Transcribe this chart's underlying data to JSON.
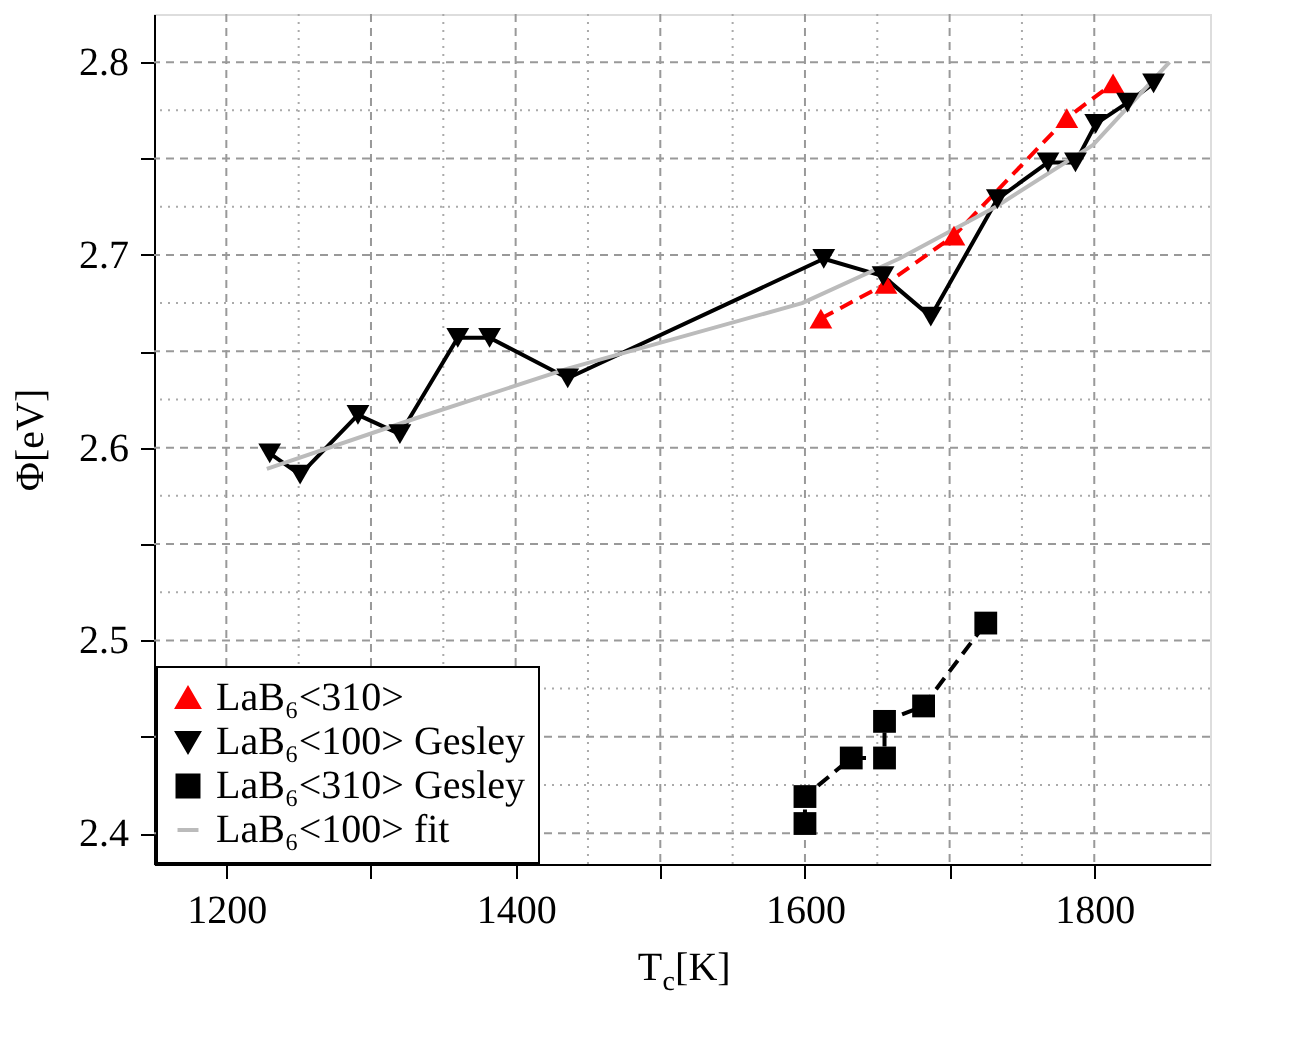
{
  "chart_data": {
    "type": "line",
    "xlabel": "T$_{c}$[K]",
    "ylabel": "Φ[eV]",
    "xlim": [
      1150,
      1880
    ],
    "ylim": [
      2.384,
      2.825
    ],
    "xticks": [
      1200,
      {
        "value": 1300,
        "label": null
      },
      1400,
      {
        "value": 1500,
        "label": null
      },
      1600,
      {
        "value": 1700,
        "label": null
      },
      1800
    ],
    "yticks": [
      2.4,
      {
        "value": 2.45,
        "label": null
      },
      2.5,
      {
        "value": 2.55,
        "label": null
      },
      2.6,
      {
        "value": 2.65,
        "label": null
      },
      2.7,
      {
        "value": 2.75,
        "label": null
      },
      2.8
    ],
    "grid": true,
    "legend": "bottom left",
    "series": [
      {
        "name": "LaB₆<310>",
        "color": "#ff0000",
        "marker": "triangle",
        "line_style": "dashed",
        "x": [
          1611,
          1656,
          1703,
          1781,
          1813
        ],
        "values": [
          2.667,
          2.685,
          2.71,
          2.771,
          2.789
        ]
      },
      {
        "name": "LaB₆<100> Gesley",
        "color": "#000000",
        "marker": "triangle-down",
        "line_style": "solid",
        "x": [
          1230,
          1251,
          1291,
          1320,
          1360,
          1382,
          1436,
          1613,
          1654,
          1687,
          1733,
          1768,
          1787,
          1801,
          1823,
          1841
        ],
        "values": [
          2.597,
          2.586,
          2.617,
          2.607,
          2.657,
          2.657,
          2.636,
          2.698,
          2.689,
          2.668,
          2.729,
          2.748,
          2.748,
          2.768,
          2.779,
          2.789
        ]
      },
      {
        "name": "LaB₆<310> Gesley",
        "color": "#000000",
        "marker": "square",
        "line_style": "dashed",
        "x": [
          1600,
          1600,
          1632,
          1655,
          1655,
          1682,
          1725
        ],
        "values": [
          2.405,
          2.419,
          2.439,
          2.439,
          2.458,
          2.466,
          2.509
        ]
      },
      {
        "name": "LaB₆<100> fit",
        "color": "#bbbbbb",
        "marker": "none",
        "line_style": "solid",
        "x": [
          1228,
          1330,
          1436,
          1598,
          1665,
          1732,
          1799,
          1852
        ],
        "values": [
          2.589,
          2.615,
          2.641,
          2.675,
          2.698,
          2.725,
          2.757,
          2.8
        ]
      }
    ]
  }
}
